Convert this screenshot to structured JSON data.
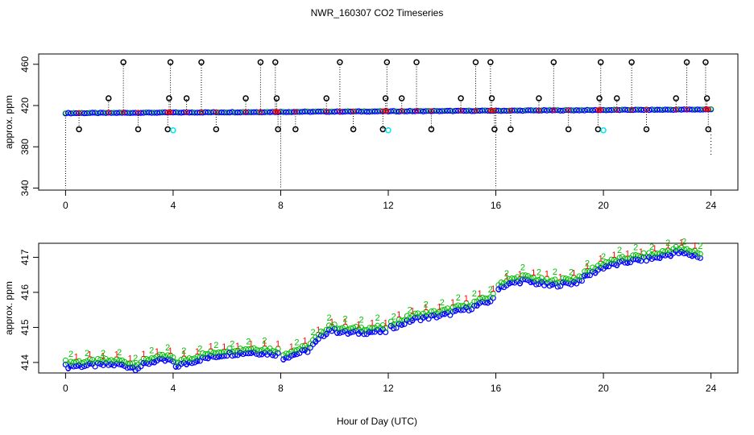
{
  "chart_data": {
    "title": "NWR_160307  CO2 Timeseries",
    "xlabel": "Hour of Day (UTC)",
    "colors": {
      "axis": "#000000",
      "c1": "#ff0000",
      "c2": "#00c000",
      "c3": "#0000ff",
      "c4": "#00e5ee",
      "spike": "#000000"
    },
    "panels": [
      {
        "type": "scatter",
        "ylabel": "approx. ppm",
        "xlim": [
          -1,
          25
        ],
        "ylim": [
          338,
          470
        ],
        "xticks": [
          0,
          4,
          8,
          12,
          16,
          20,
          24
        ],
        "yticks": [
          340,
          380,
          420,
          460
        ],
        "spikes_high": [
          2.15,
          3.9,
          5.05,
          7.25,
          7.8,
          10.2,
          11.95,
          13.05,
          15.25,
          15.8,
          18.15,
          19.9,
          21.05,
          23.1,
          23.8
        ],
        "spikes_mid": [
          1.6,
          3.85,
          4.5,
          6.7,
          7.85,
          9.7,
          11.9,
          12.5,
          14.7,
          15.85,
          17.6,
          19.85,
          20.5,
          22.7,
          23.85
        ],
        "spikes_low": [
          0.5,
          2.7,
          3.8,
          5.6,
          7.9,
          8.55,
          10.7,
          11.8,
          13.6,
          15.95,
          16.55,
          18.7,
          19.8,
          21.6,
          23.9
        ],
        "spikes_bottom": [
          0.0,
          8.0,
          16.0
        ],
        "cyan_low": [
          4.0,
          12.0,
          20.0
        ]
      },
      {
        "type": "scatter",
        "ylabel": "approx. ppm",
        "xlim": [
          -1,
          25
        ],
        "ylim": [
          413.7,
          417.4
        ],
        "xticks": [
          0,
          4,
          8,
          12,
          16,
          20,
          24
        ],
        "yticks": [
          414,
          415,
          416,
          417
        ],
        "series_labels": [
          "1",
          "2",
          "3"
        ],
        "trend": [
          [
            0,
            413.95
          ],
          [
            1,
            413.98
          ],
          [
            2,
            414.0
          ],
          [
            2.6,
            413.9
          ],
          [
            3.3,
            414.1
          ],
          [
            3.9,
            414.12
          ],
          [
            4.1,
            413.95
          ],
          [
            5,
            414.15
          ],
          [
            6,
            414.3
          ],
          [
            7,
            414.35
          ],
          [
            7.9,
            414.3
          ],
          [
            8.1,
            414.2
          ],
          [
            9,
            414.4
          ],
          [
            9.8,
            415.0
          ],
          [
            10.5,
            414.9
          ],
          [
            11.9,
            414.95
          ],
          [
            12.1,
            415.05
          ],
          [
            13,
            415.3
          ],
          [
            14,
            415.4
          ],
          [
            15,
            415.6
          ],
          [
            15.9,
            415.85
          ],
          [
            16.1,
            416.2
          ],
          [
            17,
            416.4
          ],
          [
            18,
            416.25
          ],
          [
            19,
            416.35
          ],
          [
            19.9,
            416.75
          ],
          [
            20.1,
            416.8
          ],
          [
            21,
            416.95
          ],
          [
            22,
            417.05
          ],
          [
            22.7,
            417.2
          ],
          [
            23.5,
            417.1
          ],
          [
            23.7,
            417.0
          ]
        ]
      }
    ]
  }
}
